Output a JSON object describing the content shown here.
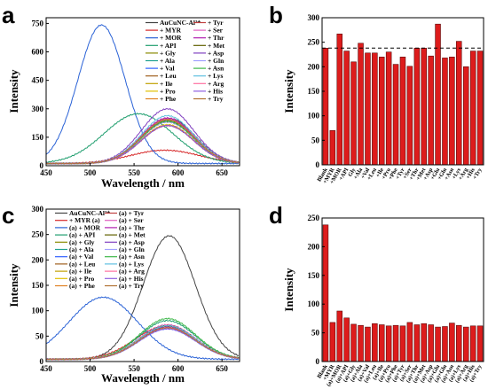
{
  "panels": [
    {
      "label": "a"
    },
    {
      "label": "b"
    },
    {
      "label": "c"
    },
    {
      "label": "d"
    }
  ],
  "colors": {
    "bar_fill": "#dd1c1c",
    "bar_stroke": "#5a0a0a",
    "ref_line": "#000000"
  },
  "chart_data": [
    {
      "type": "line",
      "panel": "a",
      "xlabel": "Wavelength / nm",
      "ylabel": "Intensity",
      "xlim": [
        450,
        670
      ],
      "ylim": [
        0,
        780
      ],
      "xticks": [
        450,
        500,
        550,
        600,
        650
      ],
      "yticks": [
        0,
        150,
        300,
        450,
        600,
        750
      ],
      "legend_position": "top-right",
      "series": [
        {
          "name": "AuCuNC-Al³⁺",
          "color": "#444444",
          "peak_x": 590,
          "peak_y": 238,
          "width": 42
        },
        {
          "name": "+ MYR",
          "color": "#d62728",
          "peak_x": 585,
          "peak_y": 70,
          "width": 55
        },
        {
          "name": "+ MOR",
          "color": "#2a62d6",
          "peak_x": 513,
          "peak_y": 730,
          "width": 38
        },
        {
          "name": "+ API",
          "color": "#1f9e6e",
          "peak_x": 555,
          "peak_y": 262,
          "width": 55
        },
        {
          "name": "+ Gly",
          "color": "#8a8a00",
          "peak_x": 588,
          "peak_y": 233,
          "width": 42
        },
        {
          "name": "+ Ala",
          "color": "#20a090",
          "peak_x": 588,
          "peak_y": 225,
          "width": 42
        },
        {
          "name": "+ Val",
          "color": "#3060ff",
          "peak_x": 588,
          "peak_y": 230,
          "width": 42
        },
        {
          "name": "+ Leu",
          "color": "#a06020",
          "peak_x": 588,
          "peak_y": 222,
          "width": 42
        },
        {
          "name": "+ Ile",
          "color": "#c0a000",
          "peak_x": 588,
          "peak_y": 230,
          "width": 42
        },
        {
          "name": "+ Pro",
          "color": "#e0c000",
          "peak_x": 588,
          "peak_y": 205,
          "width": 42
        },
        {
          "name": "+ Phe",
          "color": "#e08020",
          "peak_x": 588,
          "peak_y": 218,
          "width": 42
        },
        {
          "name": "+ Tyr",
          "color": "#c04040",
          "peak_x": 588,
          "peak_y": 200,
          "width": 42
        },
        {
          "name": "+ Ser",
          "color": "#e060c0",
          "peak_x": 588,
          "peak_y": 238,
          "width": 42
        },
        {
          "name": "+ Thr",
          "color": "#b020b0",
          "peak_x": 588,
          "peak_y": 240,
          "width": 42
        },
        {
          "name": "+ Met",
          "color": "#606000",
          "peak_x": 588,
          "peak_y": 222,
          "width": 42
        },
        {
          "name": "+ Asp",
          "color": "#8040c0",
          "peak_x": 588,
          "peak_y": 288,
          "width": 42
        },
        {
          "name": "+ Gln",
          "color": "#a0a0ff",
          "peak_x": 588,
          "peak_y": 218,
          "width": 42
        },
        {
          "name": "+ Asn",
          "color": "#3fb84a",
          "peak_x": 588,
          "peak_y": 222,
          "width": 42
        },
        {
          "name": "+ Lys",
          "color": "#60c0e0",
          "peak_x": 588,
          "peak_y": 252,
          "width": 42
        },
        {
          "name": "+ Arg",
          "color": "#ff70a0",
          "peak_x": 588,
          "peak_y": 232,
          "width": 42
        },
        {
          "name": "+ His",
          "color": "#9060e0",
          "peak_x": 588,
          "peak_y": 200,
          "width": 42
        },
        {
          "name": "+ Try",
          "color": "#b07030",
          "peak_x": 588,
          "peak_y": 232,
          "width": 42
        }
      ]
    },
    {
      "type": "bar",
      "panel": "b",
      "ylabel": "Intensity",
      "ylim": [
        0,
        300
      ],
      "yticks": [
        0,
        50,
        100,
        150,
        200,
        250,
        300
      ],
      "reference_line": 238,
      "categories": [
        "Blank",
        "+MYR",
        "+MOR",
        "+API",
        "Gly",
        "+Ala",
        "+Val",
        "+Leu",
        "+Ile",
        "+Pro",
        "+Phe",
        "+Tyr",
        "+Ser",
        "+Thr",
        "+Met",
        "+Asp",
        "+Glu",
        "+Gln",
        "+Asn",
        "+Lys",
        "+Arg",
        "+His",
        "+Try"
      ],
      "values": [
        238,
        70,
        267,
        232,
        210,
        248,
        228,
        228,
        220,
        230,
        205,
        220,
        201,
        238,
        238,
        222,
        287,
        218,
        220,
        252,
        200,
        232,
        232
      ]
    },
    {
      "type": "line",
      "panel": "c",
      "xlabel": "Wavelength / nm",
      "ylabel": "Intensity",
      "xlim": [
        450,
        670
      ],
      "ylim": [
        0,
        300
      ],
      "xticks": [
        450,
        500,
        550,
        600,
        650
      ],
      "yticks": [
        0,
        50,
        100,
        150,
        200,
        250,
        300
      ],
      "legend_position": "top-left",
      "series": [
        {
          "name": "AuCuNC-Al³⁺",
          "color": "#444444",
          "peak_x": 590,
          "peak_y": 243,
          "width": 42
        },
        {
          "name": "+ MYR (a)",
          "color": "#d62728",
          "peak_x": 585,
          "peak_y": 65,
          "width": 48
        },
        {
          "name": "(a) + MOR",
          "color": "#2a62d6",
          "peak_x": 515,
          "peak_y": 122,
          "width": 55
        },
        {
          "name": "(a) + API",
          "color": "#1f9e6e",
          "peak_x": 588,
          "peak_y": 76,
          "width": 45
        },
        {
          "name": "(a) + Gly",
          "color": "#8a8a00",
          "peak_x": 588,
          "peak_y": 65,
          "width": 45
        },
        {
          "name": "(a) + Ala",
          "color": "#20a090",
          "peak_x": 588,
          "peak_y": 64,
          "width": 45
        },
        {
          "name": "(a) + Val",
          "color": "#3060ff",
          "peak_x": 588,
          "peak_y": 60,
          "width": 45
        },
        {
          "name": "(a) + Leu",
          "color": "#a06020",
          "peak_x": 588,
          "peak_y": 66,
          "width": 45
        },
        {
          "name": "(a) + Ile",
          "color": "#c0a000",
          "peak_x": 588,
          "peak_y": 64,
          "width": 45
        },
        {
          "name": "(a) + Pro",
          "color": "#e0c000",
          "peak_x": 588,
          "peak_y": 62,
          "width": 45
        },
        {
          "name": "(a) + Phe",
          "color": "#e08020",
          "peak_x": 588,
          "peak_y": 62,
          "width": 45
        },
        {
          "name": "(a) + Tyr",
          "color": "#c04040",
          "peak_x": 588,
          "peak_y": 62,
          "width": 45
        },
        {
          "name": "(a) + Ser",
          "color": "#e060c0",
          "peak_x": 588,
          "peak_y": 68,
          "width": 45
        },
        {
          "name": "(a) + Thr",
          "color": "#b020b0",
          "peak_x": 588,
          "peak_y": 65,
          "width": 45
        },
        {
          "name": "(a) + Met",
          "color": "#606000",
          "peak_x": 588,
          "peak_y": 66,
          "width": 45
        },
        {
          "name": "(a) + Asp",
          "color": "#8040c0",
          "peak_x": 588,
          "peak_y": 64,
          "width": 45
        },
        {
          "name": "(a) + Gln",
          "color": "#a0a0ff",
          "peak_x": 588,
          "peak_y": 60,
          "width": 45
        },
        {
          "name": "(a) + Asn",
          "color": "#3fb84a",
          "peak_x": 588,
          "peak_y": 80,
          "width": 45
        },
        {
          "name": "(a) + Lys",
          "color": "#60c0e0",
          "peak_x": 588,
          "peak_y": 66,
          "width": 45
        },
        {
          "name": "(a) + Arg",
          "color": "#ff70a0",
          "peak_x": 588,
          "peak_y": 62,
          "width": 45
        },
        {
          "name": "(a) + His",
          "color": "#9060e0",
          "peak_x": 588,
          "peak_y": 60,
          "width": 45
        },
        {
          "name": "(a) + Try",
          "color": "#b07030",
          "peak_x": 588,
          "peak_y": 62,
          "width": 45
        }
      ]
    },
    {
      "type": "bar",
      "panel": "d",
      "ylabel": "Intensity",
      "ylim": [
        0,
        250
      ],
      "yticks": [
        0,
        50,
        100,
        150,
        200,
        250
      ],
      "categories": [
        "Blank",
        "+MYR",
        "(a)+MOR",
        "(a)+API",
        "(a)+Gly",
        "(a)+Ala",
        "(a)+Val",
        "(a)+Leu",
        "(a)+Ile",
        "(a)+Pro",
        "(a)+Phe",
        "(a)+Tyr",
        "(a)+Ser",
        "(a)+Thr",
        "(a)+Met",
        "(a)+Asp",
        "(a)+Glu",
        "(a)+Gln",
        "(a)+Asn",
        "(a)+Lys",
        "(a)+Arg",
        "(a)+His",
        "(a)+Try"
      ],
      "values": [
        238,
        68,
        88,
        76,
        65,
        63,
        60,
        66,
        64,
        62,
        63,
        62,
        68,
        64,
        66,
        64,
        60,
        61,
        67,
        63,
        60,
        62,
        62
      ]
    }
  ]
}
